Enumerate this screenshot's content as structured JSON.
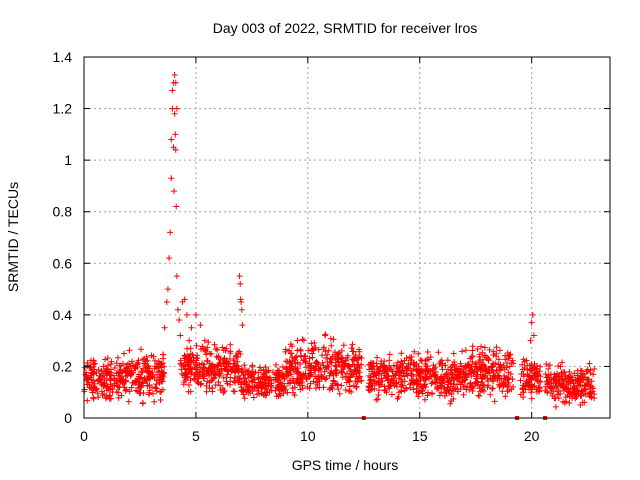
{
  "chart_data": {
    "type": "scatter",
    "title": "Day 003 of 2022, SRMTID for receiver lros",
    "xlabel": "GPS time / hours",
    "ylabel": "SRMTID / TECUs",
    "xlim": [
      0,
      23.5
    ],
    "ylim": [
      0,
      1.4
    ],
    "xticks": [
      0,
      5,
      10,
      15,
      20
    ],
    "xtick_labels": [
      "0",
      "5",
      "10",
      "15",
      "20"
    ],
    "yticks": [
      0,
      0.2,
      0.4,
      0.6,
      0.8,
      1,
      1.2,
      1.4
    ],
    "ytick_labels": [
      "0",
      "0.2",
      "0.4",
      "0.6",
      "0.8",
      "1",
      "1.2",
      "1.4"
    ],
    "grid": true,
    "marker": "+",
    "series": [
      {
        "name": "SRMTID",
        "color": "#ff0000",
        "note": "dense scatter of ~2500 points, baseline 0.05-0.30 TECU with peaks below",
        "x": [
          3.6,
          3.7,
          3.75,
          3.8,
          3.85,
          3.9,
          3.9,
          3.95,
          3.95,
          4.0,
          4.0,
          4.02,
          4.05,
          4.05,
          4.08,
          4.1,
          4.1,
          4.12,
          4.15,
          4.15,
          4.2,
          4.25,
          4.3,
          4.4,
          4.5,
          4.6,
          4.7,
          4.8,
          5.0,
          5.2,
          5.4,
          6.95,
          6.98,
          7.0,
          7.02,
          7.05,
          7.08,
          19.95,
          20.0,
          20.05,
          20.1
        ],
        "y": [
          0.35,
          0.45,
          0.5,
          0.62,
          0.72,
          0.93,
          1.08,
          1.2,
          1.27,
          1.05,
          1.3,
          0.88,
          1.33,
          1.18,
          1.1,
          1.3,
          1.04,
          0.82,
          0.55,
          1.2,
          0.42,
          0.38,
          0.32,
          0.45,
          0.46,
          0.4,
          0.3,
          0.35,
          0.4,
          0.36,
          0.3,
          0.55,
          0.52,
          0.46,
          0.45,
          0.42,
          0.36,
          0.3,
          0.37,
          0.4,
          0.32
        ]
      }
    ],
    "baseline_segments": [
      {
        "x": [
          0,
          1.5
        ],
        "y_range": [
          0.05,
          0.25
        ]
      },
      {
        "x": [
          1.5,
          3.6
        ],
        "y_range": [
          0.05,
          0.28
        ]
      },
      {
        "x": [
          4.3,
          7.0
        ],
        "y_range": [
          0.08,
          0.3
        ]
      },
      {
        "x": [
          7.0,
          9.0
        ],
        "y_range": [
          0.05,
          0.22
        ]
      },
      {
        "x": [
          9.0,
          12.4
        ],
        "y_range": [
          0.06,
          0.33
        ]
      },
      {
        "x": [
          12.7,
          17.0
        ],
        "y_range": [
          0.05,
          0.27
        ]
      },
      {
        "x": [
          17.0,
          19.2
        ],
        "y_range": [
          0.06,
          0.3
        ]
      },
      {
        "x": [
          19.5,
          20.4
        ],
        "y_range": [
          0.06,
          0.25
        ]
      },
      {
        "x": [
          20.6,
          22.8
        ],
        "y_range": [
          0.03,
          0.22
        ]
      }
    ],
    "zero_points": [
      12.5,
      19.35,
      20.6
    ]
  }
}
